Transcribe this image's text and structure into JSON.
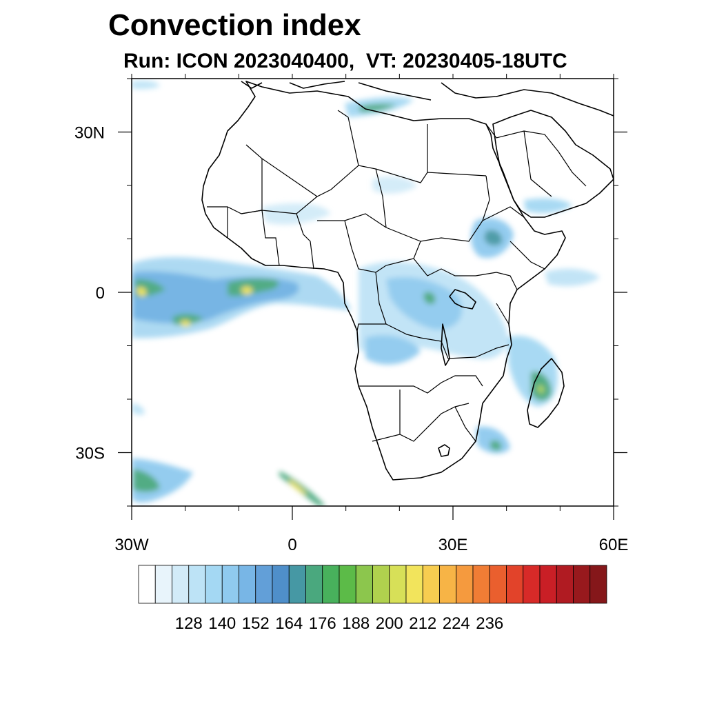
{
  "header": {
    "title": "Convection index",
    "subtitle": "Run: ICON 2023040400,  VT: 20230405-18UTC"
  },
  "map": {
    "projection": "cylindrical-equidistant",
    "lon_range": [
      -30,
      60
    ],
    "lat_range": [
      -40,
      40
    ],
    "lat_ticks": [
      {
        "lat": 30,
        "label": "30N"
      },
      {
        "lat": 0,
        "label": "0"
      },
      {
        "lat": -30,
        "label": "30S"
      }
    ],
    "lon_ticks": [
      {
        "lon": -30,
        "label": "30W"
      },
      {
        "lon": 0,
        "label": "0"
      },
      {
        "lon": 30,
        "label": "30E"
      },
      {
        "lon": 60,
        "label": "60E"
      }
    ],
    "field": "convection index",
    "regions": [
      {
        "name": "Gulf of Guinea / equatorial Atlantic band",
        "level": 176,
        "peak": 188
      },
      {
        "name": "Congo basin",
        "level": 140,
        "peak": 164
      },
      {
        "name": "Ethiopian highlands",
        "level": 146,
        "peak": 158
      },
      {
        "name": "Mozambique Channel / Madagascar",
        "level": 152,
        "peak": 176
      },
      {
        "name": "South-west Atlantic",
        "level": 164,
        "peak": 176
      },
      {
        "name": "South Atlantic front",
        "level": 164,
        "peak": 176
      }
    ]
  },
  "colorbar": {
    "colors": [
      "#ffffff",
      "#e8f4fb",
      "#d2ebf8",
      "#bde3f6",
      "#a4d8f3",
      "#8fcaef",
      "#78b6e6",
      "#629fd8",
      "#4f8fca",
      "#4698a4",
      "#4aa87e",
      "#48b15c",
      "#5cbb48",
      "#8cc64d",
      "#b0d14e",
      "#d7e058",
      "#f2e45c",
      "#f7cd50",
      "#f7b446",
      "#f59a3e",
      "#f07d35",
      "#ea5f2e",
      "#e2432a",
      "#d72a28",
      "#c91f26",
      "#b01b22",
      "#98191d",
      "#85171a"
    ],
    "labels": [
      "128",
      "140",
      "152",
      "164",
      "176",
      "188",
      "200",
      "212",
      "224",
      "236"
    ],
    "label_box_indices": [
      2,
      4,
      6,
      8,
      10,
      12,
      14,
      16,
      18,
      20
    ]
  }
}
